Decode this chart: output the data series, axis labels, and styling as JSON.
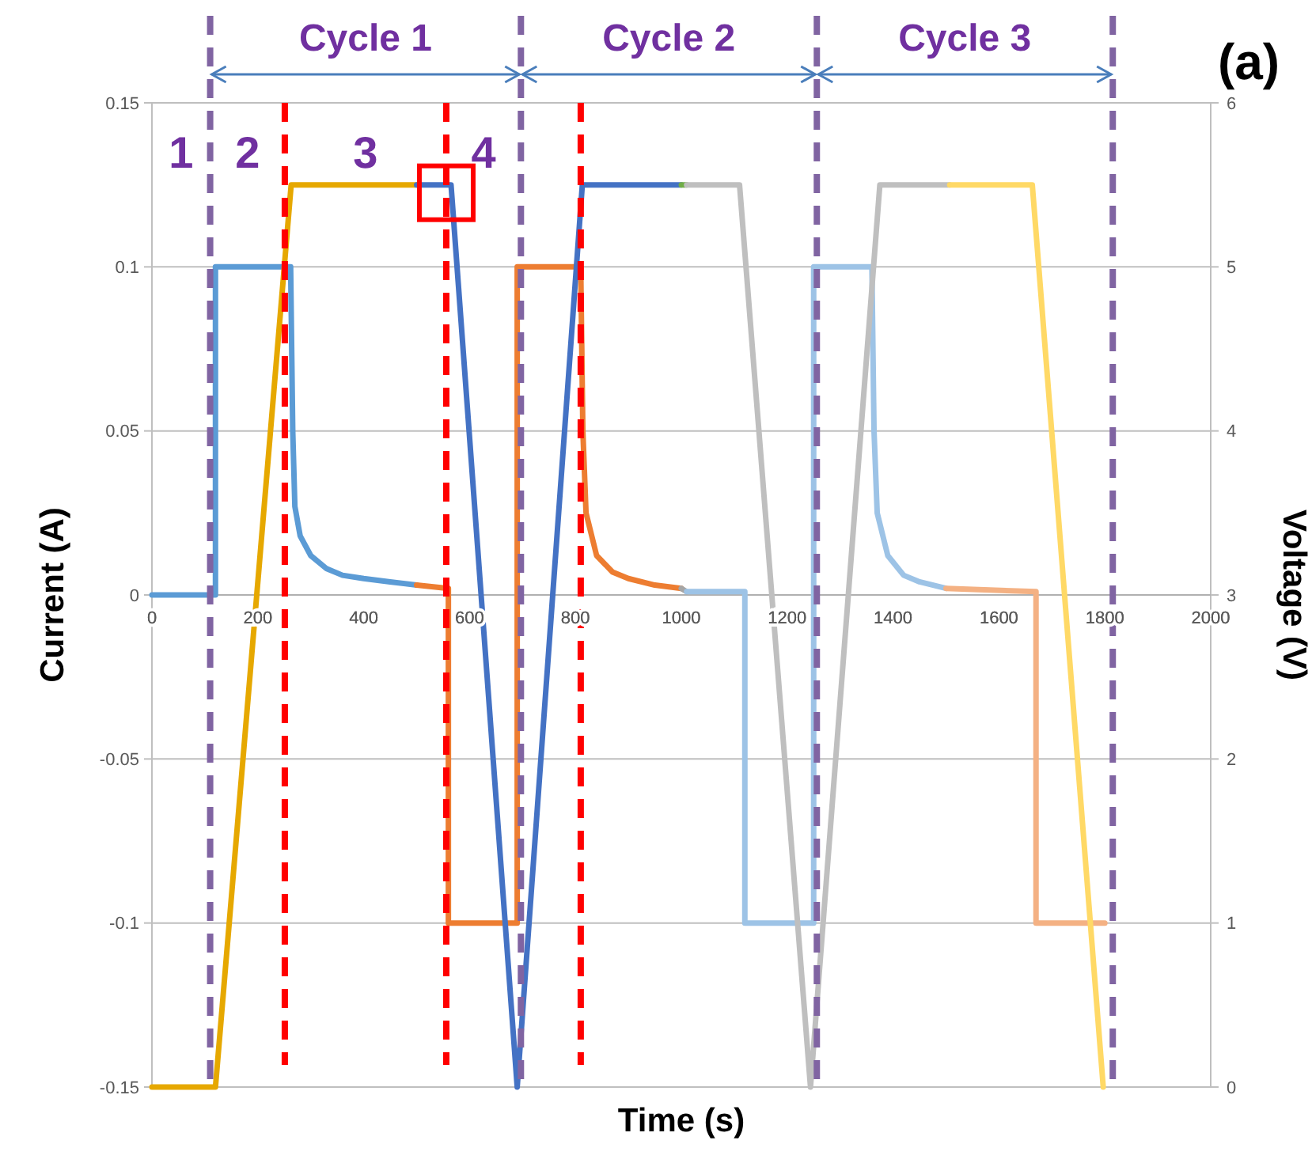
{
  "chart_data": {
    "type": "line",
    "xlabel": "Time (s)",
    "ylabel": "Current (A)",
    "y2label": "Voltage (V)",
    "xlim": [
      0,
      2000
    ],
    "xticks": [
      0,
      200,
      400,
      600,
      800,
      1000,
      1200,
      1400,
      1600,
      1800,
      2000
    ],
    "ylim": [
      -0.15,
      0.15
    ],
    "yticks": [
      -0.15,
      -0.1,
      -0.05,
      0,
      0.05,
      0.1,
      0.15
    ],
    "y2lim": [
      0,
      6
    ],
    "y2ticks": [
      0,
      1,
      2,
      3,
      4,
      5,
      6
    ],
    "grid": "y",
    "line_style": "solid",
    "marker": "none",
    "series": [
      {
        "color": "#5b9bd5",
        "x": [
          0,
          120,
          120,
          262,
          266,
          270,
          280,
          300,
          330,
          360,
          400,
          450,
          500
        ],
        "values": [
          0,
          0,
          0.1,
          0.1,
          0.05,
          0.027,
          0.018,
          0.012,
          0.008,
          0.006,
          0.005,
          0.004,
          0.003
        ]
      },
      {
        "color": "#ed7d31",
        "x": [
          500,
          560,
          560,
          690,
          690,
          810,
          814,
          820,
          840,
          870,
          900,
          950,
          1000
        ],
        "values": [
          0.003,
          0.002,
          -0.1,
          -0.1,
          0.1,
          0.1,
          0.05,
          0.025,
          0.012,
          0.007,
          0.005,
          0.003,
          0.002
        ]
      },
      {
        "color": "#a5a5a5",
        "x": [
          1000,
          1010
        ],
        "values": [
          0.002,
          0.001
        ]
      },
      {
        "color": "#9dc3e6",
        "x": [
          1010,
          1120,
          1120,
          1250,
          1250,
          1360,
          1364,
          1370,
          1390,
          1420,
          1450,
          1500
        ],
        "values": [
          0.001,
          0.001,
          -0.1,
          -0.1,
          0.1,
          0.1,
          0.05,
          0.025,
          0.012,
          0.006,
          0.004,
          0.002
        ]
      },
      {
        "color": "#f4b183",
        "x": [
          1500,
          1670,
          1670,
          1800
        ],
        "values": [
          0.002,
          0.001,
          -0.1,
          -0.1
        ]
      },
      {
        "color": "#e6a800",
        "axis": "y2",
        "x": [
          0,
          120,
          263,
          500
        ],
        "values": [
          0,
          0,
          5.5,
          5.5
        ]
      },
      {
        "color": "#4472c4",
        "axis": "y2",
        "x": [
          500,
          565,
          690,
          813,
          1000
        ],
        "values": [
          5.5,
          5.5,
          0,
          5.5,
          5.5
        ]
      },
      {
        "color": "#70ad47",
        "axis": "y2",
        "x": [
          1000,
          1010
        ],
        "values": [
          5.5,
          5.5
        ]
      },
      {
        "color": "#bfbfbf",
        "axis": "y2",
        "x": [
          1010,
          1110,
          1244,
          1375,
          1507
        ],
        "values": [
          5.5,
          5.5,
          0,
          5.5,
          5.5
        ]
      },
      {
        "color": "#ffd966",
        "axis": "y2",
        "x": [
          1507,
          1663,
          1797
        ],
        "values": [
          5.5,
          5.5,
          0
        ]
      }
    ],
    "ref_lines": [
      {
        "axis": "x",
        "value": 110,
        "color": "#8064a2",
        "line_style": "dashed"
      },
      {
        "axis": "x",
        "value": 251,
        "color": "#ff0000",
        "line_style": "dashed"
      },
      {
        "axis": "x",
        "value": 556,
        "color": "#ff0000",
        "line_style": "dashed"
      },
      {
        "axis": "x",
        "value": 697,
        "color": "#8064a2",
        "line_style": "dashed"
      },
      {
        "axis": "x",
        "value": 810,
        "color": "#ff0000",
        "line_style": "dashed"
      },
      {
        "axis": "x",
        "value": 1256,
        "color": "#8064a2",
        "line_style": "dashed"
      },
      {
        "axis": "x",
        "value": 1815,
        "color": "#8064a2",
        "line_style": "dashed"
      }
    ],
    "annotations": [
      "Cycle 1",
      "Cycle 2",
      "Cycle 3",
      "1",
      "2",
      "3",
      "4",
      "(a)"
    ]
  }
}
